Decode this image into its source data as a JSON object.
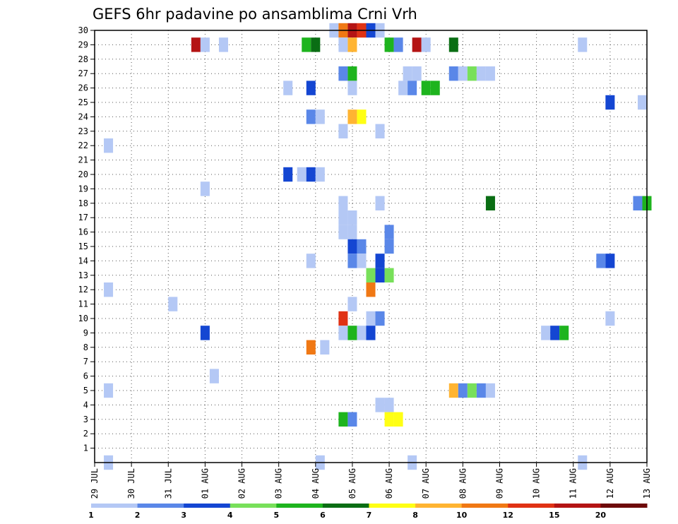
{
  "chart_data": {
    "type": "heatmap",
    "title": "GEFS 6hr padavine po ansamblima Crni Vrh",
    "xlabel": "",
    "ylabel": "",
    "x_tick_labels": [
      "29 JUL",
      "30 JUL",
      "31 JUL",
      "01 AUG",
      "02 AUG",
      "03 AUG",
      "04 AUG",
      "05 AUG",
      "06 AUG",
      "07 AUG",
      "08 AUG",
      "09 AUG",
      "10 AUG",
      "11 AUG",
      "12 AUG",
      "13 AUG"
    ],
    "x_range_days": [
      0,
      15
    ],
    "y_tick_labels": [
      "1",
      "2",
      "3",
      "4",
      "5",
      "6",
      "7",
      "8",
      "9",
      "10",
      "11",
      "12",
      "13",
      "14",
      "15",
      "16",
      "17",
      "18",
      "19",
      "20",
      "21",
      "22",
      "23",
      "24",
      "25",
      "26",
      "27",
      "28",
      "29",
      "30"
    ],
    "y_range": [
      0,
      30
    ],
    "grid": true,
    "color_levels": [
      {
        "label": "1",
        "color": "#b4c8f5"
      },
      {
        "label": "2",
        "color": "#5a87e8"
      },
      {
        "label": "3",
        "color": "#1446d2"
      },
      {
        "label": "4",
        "color": "#78e05a"
      },
      {
        "label": "5",
        "color": "#1eb41e"
      },
      {
        "label": "6",
        "color": "#0a6e14"
      },
      {
        "label": "7",
        "color": "#ffff14"
      },
      {
        "label": "8",
        "color": "#ffb432"
      },
      {
        "label": "10",
        "color": "#f07814"
      },
      {
        "label": "12",
        "color": "#e03214"
      },
      {
        "label": "15",
        "color": "#b41414"
      },
      {
        "label": "20",
        "color": "#6e0a0a"
      }
    ],
    "colorbar_labels": [
      "1",
      "2",
      "3",
      "4",
      "5",
      "6",
      "7",
      "8",
      "10",
      "12",
      "15",
      "20"
    ],
    "note": "Each cell: member m (1-30), time t in days since 29 JUL, level index (0=1-2mm ... 11=>20mm).",
    "cells": [
      {
        "m": 30,
        "t": 6.5,
        "lvl": 0
      },
      {
        "m": 30,
        "t": 6.75,
        "lvl": 8
      },
      {
        "m": 30,
        "t": 7.0,
        "lvl": 10
      },
      {
        "m": 30,
        "t": 7.25,
        "lvl": 9
      },
      {
        "m": 30,
        "t": 7.5,
        "lvl": 2
      },
      {
        "m": 30,
        "t": 7.75,
        "lvl": 0
      },
      {
        "m": 29,
        "t": 2.75,
        "lvl": 10
      },
      {
        "m": 29,
        "t": 3.0,
        "lvl": 0
      },
      {
        "m": 29,
        "t": 3.5,
        "lvl": 0
      },
      {
        "m": 29,
        "t": 5.75,
        "lvl": 4
      },
      {
        "m": 29,
        "t": 6.0,
        "lvl": 5
      },
      {
        "m": 29,
        "t": 6.75,
        "lvl": 0
      },
      {
        "m": 29,
        "t": 7.0,
        "lvl": 7
      },
      {
        "m": 29,
        "t": 8.0,
        "lvl": 4
      },
      {
        "m": 29,
        "t": 8.25,
        "lvl": 1
      },
      {
        "m": 29,
        "t": 8.75,
        "lvl": 10
      },
      {
        "m": 29,
        "t": 9.0,
        "lvl": 0
      },
      {
        "m": 29,
        "t": 9.75,
        "lvl": 5
      },
      {
        "m": 29,
        "t": 13.25,
        "lvl": 0
      },
      {
        "m": 27,
        "t": 6.75,
        "lvl": 1
      },
      {
        "m": 27,
        "t": 7.0,
        "lvl": 4
      },
      {
        "m": 27,
        "t": 8.5,
        "lvl": 0
      },
      {
        "m": 27,
        "t": 8.75,
        "lvl": 0
      },
      {
        "m": 27,
        "t": 9.75,
        "lvl": 1
      },
      {
        "m": 27,
        "t": 10.0,
        "lvl": 0
      },
      {
        "m": 27,
        "t": 10.25,
        "lvl": 3
      },
      {
        "m": 27,
        "t": 10.5,
        "lvl": 0
      },
      {
        "m": 27,
        "t": 10.75,
        "lvl": 0
      },
      {
        "m": 26,
        "t": 5.25,
        "lvl": 0
      },
      {
        "m": 26,
        "t": 5.875,
        "lvl": 2
      },
      {
        "m": 26,
        "t": 7.0,
        "lvl": 0
      },
      {
        "m": 26,
        "t": 8.375,
        "lvl": 0
      },
      {
        "m": 26,
        "t": 8.625,
        "lvl": 1
      },
      {
        "m": 26,
        "t": 9.0,
        "lvl": 4
      },
      {
        "m": 26,
        "t": 9.25,
        "lvl": 4
      },
      {
        "m": 25,
        "t": 14.0,
        "lvl": 2
      },
      {
        "m": 25,
        "t": 14.875,
        "lvl": 0
      },
      {
        "m": 24,
        "t": 5.875,
        "lvl": 1
      },
      {
        "m": 24,
        "t": 6.125,
        "lvl": 0
      },
      {
        "m": 24,
        "t": 7.0,
        "lvl": 7
      },
      {
        "m": 24,
        "t": 7.25,
        "lvl": 6
      },
      {
        "m": 23,
        "t": 6.75,
        "lvl": 0
      },
      {
        "m": 23,
        "t": 7.75,
        "lvl": 0
      },
      {
        "m": 22,
        "t": 0.375,
        "lvl": 0
      },
      {
        "m": 20,
        "t": 5.25,
        "lvl": 2
      },
      {
        "m": 20,
        "t": 5.625,
        "lvl": 0
      },
      {
        "m": 20,
        "t": 5.875,
        "lvl": 2
      },
      {
        "m": 20,
        "t": 6.125,
        "lvl": 0
      },
      {
        "m": 19,
        "t": 3.0,
        "lvl": 0
      },
      {
        "m": 18,
        "t": 6.75,
        "lvl": 0
      },
      {
        "m": 18,
        "t": 7.75,
        "lvl": 0
      },
      {
        "m": 18,
        "t": 10.75,
        "lvl": 5
      },
      {
        "m": 18,
        "t": 14.75,
        "lvl": 1
      },
      {
        "m": 18,
        "t": 15.0,
        "lvl": 4
      },
      {
        "m": 17,
        "t": 6.75,
        "lvl": 0
      },
      {
        "m": 17,
        "t": 7.0,
        "lvl": 0
      },
      {
        "m": 16,
        "t": 6.75,
        "lvl": 0
      },
      {
        "m": 16,
        "t": 7.0,
        "lvl": 0
      },
      {
        "m": 16,
        "t": 8.0,
        "lvl": 1
      },
      {
        "m": 15,
        "t": 7.0,
        "lvl": 2
      },
      {
        "m": 15,
        "t": 7.25,
        "lvl": 1
      },
      {
        "m": 15,
        "t": 8.0,
        "lvl": 1
      },
      {
        "m": 14,
        "t": 5.875,
        "lvl": 0
      },
      {
        "m": 14,
        "t": 7.0,
        "lvl": 1
      },
      {
        "m": 14,
        "t": 7.25,
        "lvl": 0
      },
      {
        "m": 14,
        "t": 7.75,
        "lvl": 2
      },
      {
        "m": 14,
        "t": 13.75,
        "lvl": 1
      },
      {
        "m": 14,
        "t": 14.0,
        "lvl": 2
      },
      {
        "m": 13,
        "t": 7.5,
        "lvl": 3
      },
      {
        "m": 13,
        "t": 7.75,
        "lvl": 2
      },
      {
        "m": 13,
        "t": 8.0,
        "lvl": 3
      },
      {
        "m": 12,
        "t": 0.375,
        "lvl": 0
      },
      {
        "m": 12,
        "t": 7.5,
        "lvl": 8
      },
      {
        "m": 11,
        "t": 2.125,
        "lvl": 0
      },
      {
        "m": 11,
        "t": 7.0,
        "lvl": 0
      },
      {
        "m": 10,
        "t": 6.75,
        "lvl": 9
      },
      {
        "m": 10,
        "t": 7.5,
        "lvl": 0
      },
      {
        "m": 10,
        "t": 7.75,
        "lvl": 1
      },
      {
        "m": 10,
        "t": 14.0,
        "lvl": 0
      },
      {
        "m": 9,
        "t": 3.0,
        "lvl": 2
      },
      {
        "m": 9,
        "t": 6.75,
        "lvl": 0
      },
      {
        "m": 9,
        "t": 7.0,
        "lvl": 4
      },
      {
        "m": 9,
        "t": 7.25,
        "lvl": 0
      },
      {
        "m": 9,
        "t": 7.5,
        "lvl": 2
      },
      {
        "m": 9,
        "t": 12.25,
        "lvl": 0
      },
      {
        "m": 9,
        "t": 12.5,
        "lvl": 2
      },
      {
        "m": 9,
        "t": 12.75,
        "lvl": 4
      },
      {
        "m": 8,
        "t": 6.25,
        "lvl": 0
      },
      {
        "m": 8,
        "t": 5.875,
        "lvl": 8
      },
      {
        "m": 6,
        "t": 3.25,
        "lvl": 0
      },
      {
        "m": 5,
        "t": 0.375,
        "lvl": 0
      },
      {
        "m": 5,
        "t": 9.75,
        "lvl": 7
      },
      {
        "m": 5,
        "t": 10.0,
        "lvl": 1
      },
      {
        "m": 5,
        "t": 10.25,
        "lvl": 3
      },
      {
        "m": 5,
        "t": 10.5,
        "lvl": 1
      },
      {
        "m": 5,
        "t": 10.75,
        "lvl": 0
      },
      {
        "m": 4,
        "t": 7.75,
        "lvl": 0
      },
      {
        "m": 4,
        "t": 8.0,
        "lvl": 0
      },
      {
        "m": 3,
        "t": 6.75,
        "lvl": 4
      },
      {
        "m": 3,
        "t": 7.0,
        "lvl": 1
      },
      {
        "m": 3,
        "t": 8.0,
        "lvl": 6
      },
      {
        "m": 3,
        "t": 8.25,
        "lvl": 6
      },
      {
        "m": 0,
        "t": 0.375,
        "lvl": 0
      },
      {
        "m": 0,
        "t": 6.125,
        "lvl": 0
      },
      {
        "m": 0,
        "t": 8.625,
        "lvl": 0
      },
      {
        "m": 0,
        "t": 13.25,
        "lvl": 0
      }
    ]
  }
}
